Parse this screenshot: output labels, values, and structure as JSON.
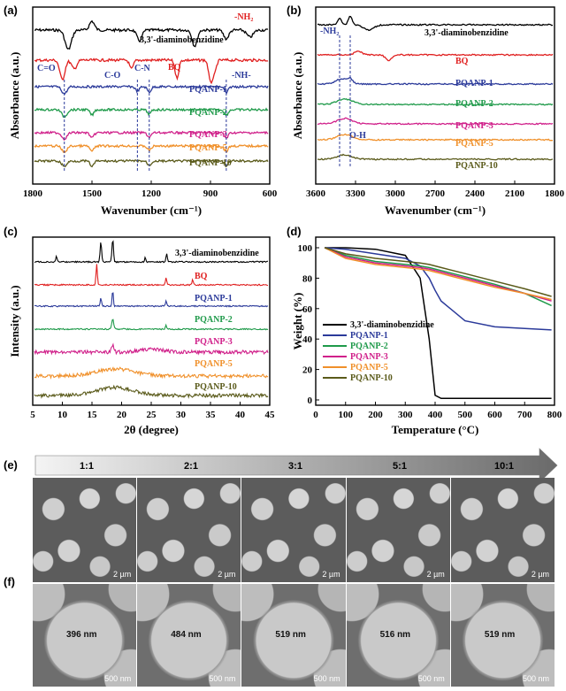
{
  "panels": {
    "a": "(a)",
    "b": "(b)",
    "c": "(c)",
    "d": "(d)",
    "e": "(e)",
    "f": "(f)"
  },
  "chart_data": [
    {
      "type": "line",
      "panel": "(a)",
      "xlabel": "Wavenumber",
      "xunit": "(cm⁻¹)",
      "ylabel": "Absorbance (a.u.)",
      "xlim": [
        1800,
        600
      ],
      "xticks": [
        "1800",
        "1500",
        "1200",
        "900",
        "600"
      ],
      "series": [
        {
          "name": "3,3'-diaminobenzidine",
          "color": "#000000"
        },
        {
          "name": "BQ",
          "color": "#e02020"
        },
        {
          "name": "PQANP-1",
          "color": "#2b3a9a"
        },
        {
          "name": "PQANP-2",
          "color": "#1f9a4a"
        },
        {
          "name": "PQANP-3",
          "color": "#d0208a"
        },
        {
          "name": "PQANP-5",
          "color": "#f0902a"
        },
        {
          "name": "PQANP-10",
          "color": "#5a5a1a"
        }
      ],
      "annotations": [
        "C=O",
        "C-O",
        "C-N",
        "-NH-",
        "-NH₂"
      ],
      "markers": [
        1640,
        1270,
        1210,
        820
      ]
    },
    {
      "type": "line",
      "panel": "(b)",
      "xlabel": "Wavenumber",
      "xunit": "(cm⁻¹)",
      "ylabel": "Absorbance (a.u.)",
      "xlim": [
        3600,
        1800
      ],
      "xticks": [
        "3600",
        "3300",
        "3000",
        "2700",
        "2400",
        "2100",
        "1800"
      ],
      "series": [
        {
          "name": "3,3'-diaminobenzidine",
          "color": "#000000"
        },
        {
          "name": "BQ",
          "color": "#e02020"
        },
        {
          "name": "PQANP-1",
          "color": "#2b3a9a"
        },
        {
          "name": "PQANP-2",
          "color": "#1f9a4a"
        },
        {
          "name": "PQANP-3",
          "color": "#d0208a"
        },
        {
          "name": "PQANP-5",
          "color": "#f0902a"
        },
        {
          "name": "PQANP-10",
          "color": "#5a5a1a"
        }
      ],
      "annotations": [
        "-NH₂",
        "O-H"
      ],
      "markers": [
        3420,
        3340
      ]
    },
    {
      "type": "line",
      "panel": "(c)",
      "xlabel": "2θ (degree)",
      "ylabel": "Intensity (a.u.)",
      "xlim": [
        5,
        45
      ],
      "xticks": [
        "5",
        "10",
        "15",
        "20",
        "25",
        "30",
        "35",
        "40",
        "45"
      ],
      "series": [
        {
          "name": "3,3'-diaminobenzidine",
          "color": "#000000"
        },
        {
          "name": "BQ",
          "color": "#e02020"
        },
        {
          "name": "PQANP-1",
          "color": "#2b3a9a"
        },
        {
          "name": "PQANP-2",
          "color": "#1f9a4a"
        },
        {
          "name": "PQANP-3",
          "color": "#d0208a"
        },
        {
          "name": "PQANP-5",
          "color": "#f0902a"
        },
        {
          "name": "PQANP-10",
          "color": "#5a5a1a"
        }
      ]
    },
    {
      "type": "line",
      "panel": "(d)",
      "xlabel": "Temperature (°C)",
      "ylabel": "Weight (%)",
      "xlim": [
        0,
        800
      ],
      "ylim": [
        0,
        100
      ],
      "xticks": [
        "0",
        "100",
        "200",
        "300",
        "400",
        "500",
        "600",
        "700",
        "800"
      ],
      "yticks": [
        "0",
        "20",
        "40",
        "60",
        "80",
        "100"
      ],
      "legend": "bottom-left",
      "x": [
        30,
        100,
        200,
        300,
        350,
        380,
        400,
        420,
        500,
        600,
        700,
        790
      ],
      "series": [
        {
          "name": "3,3'-diaminobenzidine",
          "color": "#000000",
          "values": [
            100,
            100,
            99,
            95,
            80,
            40,
            3,
            1,
            1,
            1,
            1,
            1
          ]
        },
        {
          "name": "PQANP-1",
          "color": "#2b3a9a",
          "values": [
            100,
            99,
            96,
            93,
            88,
            80,
            72,
            65,
            52,
            48,
            47,
            46
          ]
        },
        {
          "name": "PQANP-2",
          "color": "#1f9a4a",
          "values": [
            100,
            95,
            91,
            89,
            88,
            87,
            86,
            85,
            81,
            76,
            70,
            62
          ]
        },
        {
          "name": "PQANP-3",
          "color": "#d0208a",
          "values": [
            100,
            94,
            90,
            88,
            87,
            86,
            85,
            84,
            80,
            75,
            70,
            65
          ]
        },
        {
          "name": "PQANP-5",
          "color": "#f0902a",
          "values": [
            100,
            93,
            89,
            87,
            86,
            85,
            84,
            83,
            79,
            74,
            70,
            66
          ]
        },
        {
          "name": "PQANP-10",
          "color": "#5a5a1a",
          "values": [
            100,
            96,
            93,
            91,
            90,
            89,
            88,
            87,
            83,
            78,
            73,
            68
          ]
        }
      ]
    }
  ],
  "sem": {
    "ratios": [
      "1:1",
      "2:1",
      "3:1",
      "5:1",
      "10:1"
    ],
    "scale_e": "2 µm",
    "scale_f": "500 nm",
    "sizes": [
      "396 nm",
      "484 nm",
      "519 nm",
      "516 nm",
      "519 nm"
    ]
  }
}
